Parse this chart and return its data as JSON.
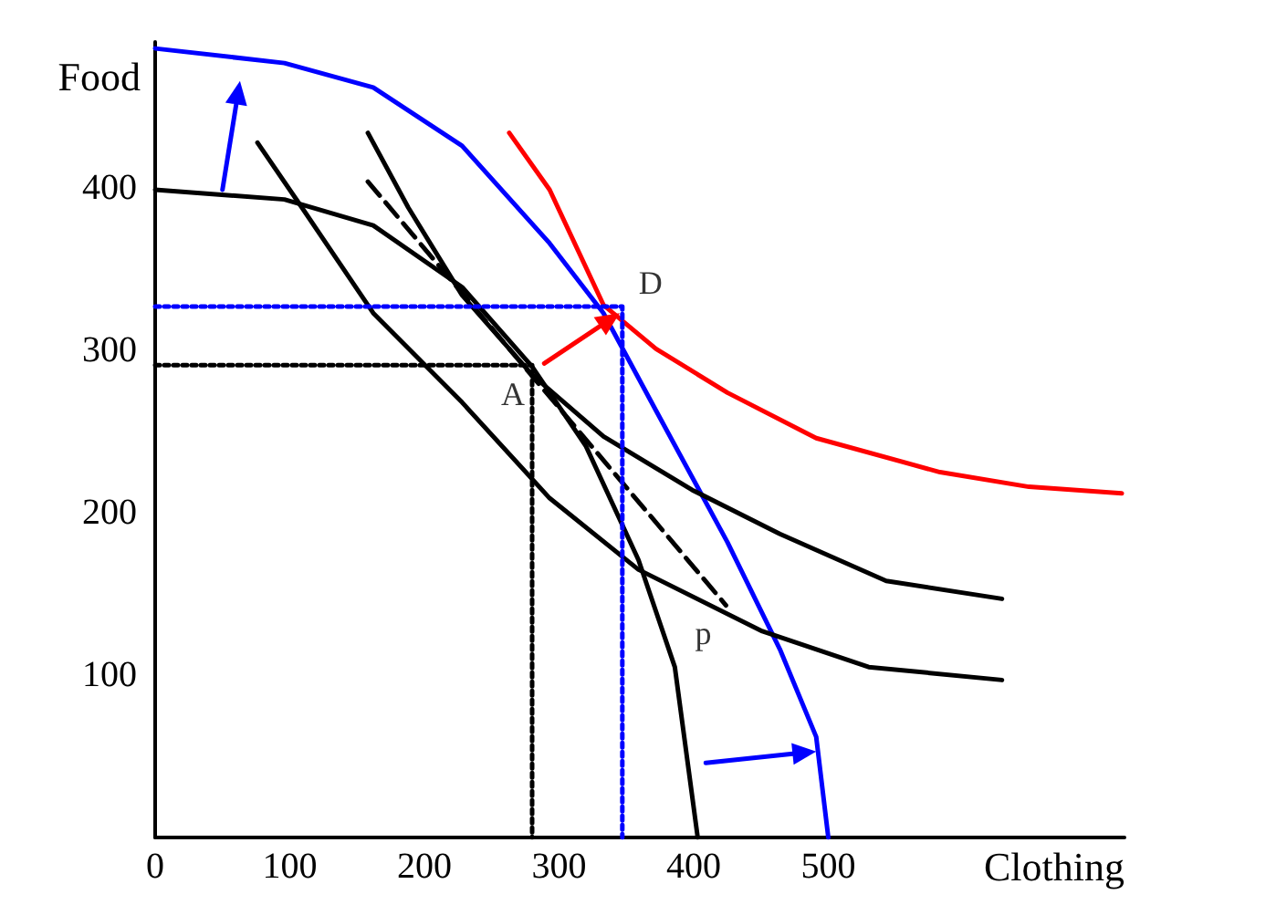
{
  "chart_data": {
    "type": "line",
    "xlabel": "Clothing",
    "ylabel": "Food",
    "xlim": [
      0,
      720
    ],
    "ylim": [
      0,
      490
    ],
    "xticks": [
      0,
      100,
      200,
      300,
      400,
      500
    ],
    "yticks": [
      100,
      200,
      300,
      400
    ],
    "grid": false,
    "marker": "none",
    "series": [
      {
        "color": "#000000",
        "line_style": "solid",
        "x": [
          0,
          96,
          162,
          228,
          280,
          320,
          359,
          386,
          403
        ],
        "values": [
          399,
          393,
          377,
          339,
          290,
          241,
          171,
          105,
          0
        ]
      },
      {
        "color": "#0000ff",
        "line_style": "solid",
        "x": [
          0,
          96,
          162,
          228,
          293,
          333,
          372,
          425,
          464,
          491,
          500
        ],
        "values": [
          486,
          477,
          462,
          426,
          366,
          323,
          263,
          182,
          116,
          62,
          0
        ]
      },
      {
        "color": "#ff0000",
        "line_style": "solid",
        "x": [
          263,
          293,
          333,
          372,
          425,
          491,
          583,
          649,
          718
        ],
        "values": [
          434,
          399,
          328,
          301,
          274,
          246,
          225,
          216,
          212
        ]
      },
      {
        "color": "#000000",
        "line_style": "solid",
        "x": [
          158,
          188,
          228,
          280,
          333,
          399,
          464,
          543,
          629
        ],
        "values": [
          434,
          388,
          334,
          285,
          247,
          214,
          187,
          158,
          147
        ]
      },
      {
        "color": "#000000",
        "line_style": "solid",
        "x": [
          76,
          109,
          162,
          228,
          293,
          359,
          451,
          530,
          629
        ],
        "values": [
          428,
          388,
          323,
          268,
          209,
          165,
          127,
          105,
          97
        ]
      },
      {
        "color": "#000000",
        "line_style": "dashed",
        "x": [
          158,
          424
        ],
        "values": [
          404,
          143
        ]
      },
      {
        "color": "#000000",
        "line_style": "dotted",
        "x": [
          0,
          280,
          280
        ],
        "values": [
          291,
          291,
          0
        ]
      },
      {
        "color": "#0000ff",
        "line_style": "dotted",
        "x": [
          0,
          347,
          347
        ],
        "values": [
          327,
          327,
          0
        ]
      }
    ],
    "annotations": [
      {
        "text": "A",
        "x": 280,
        "y": 290
      },
      {
        "text": "D",
        "x": 347,
        "y": 327
      },
      {
        "text": "p",
        "x": 424,
        "y": 143
      }
    ]
  }
}
